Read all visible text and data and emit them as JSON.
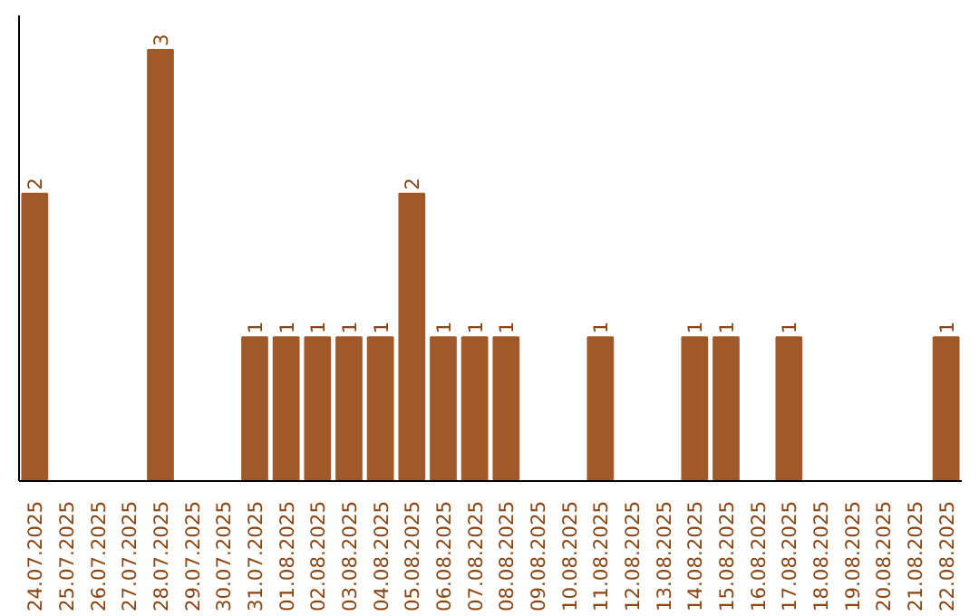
{
  "chart_data": {
    "type": "bar",
    "categories": [
      "24.07.2025",
      "25.07.2025",
      "26.07.2025",
      "27.07.2025",
      "28.07.2025",
      "29.07.2025",
      "30.07.2025",
      "31.07.2025",
      "01.08.2025",
      "02.08.2025",
      "03.08.2025",
      "04.08.2025",
      "05.08.2025",
      "06.08.2025",
      "07.08.2025",
      "08.08.2025",
      "09.08.2025",
      "10.08.2025",
      "11.08.2025",
      "12.08.2025",
      "13.08.2025",
      "14.08.2025",
      "15.08.2025",
      "16.08.2025",
      "17.08.2025",
      "18.08.2025",
      "19.08.2025",
      "20.08.2025",
      "21.08.2025",
      "22.08.2025"
    ],
    "values": [
      2,
      0,
      0,
      0,
      3,
      0,
      0,
      1,
      1,
      1,
      1,
      1,
      2,
      1,
      1,
      1,
      0,
      0,
      1,
      0,
      0,
      1,
      1,
      0,
      1,
      0,
      0,
      0,
      0,
      1
    ],
    "value_labels": [
      "2",
      null,
      null,
      null,
      "3",
      null,
      null,
      "1",
      "1",
      "1",
      "1",
      "1",
      "2",
      "1",
      "1",
      "1",
      null,
      null,
      "1",
      null,
      null,
      "1",
      "1",
      null,
      "1",
      null,
      null,
      null,
      null,
      "1"
    ],
    "color": "#a0592a",
    "grid": false,
    "tick_labels": "x"
  }
}
